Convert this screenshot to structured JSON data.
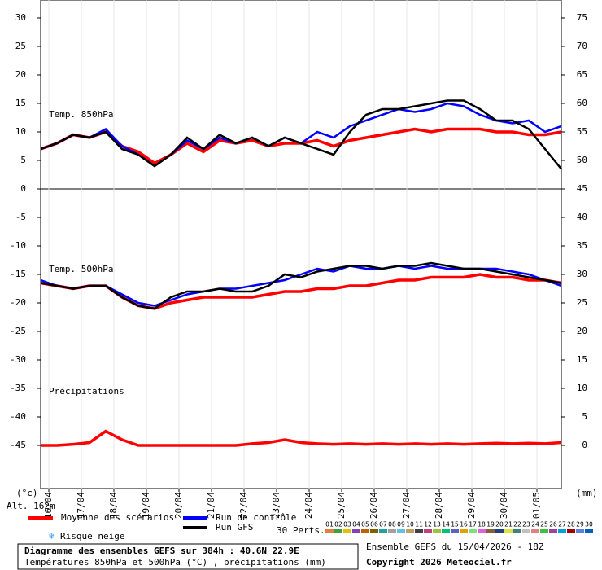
{
  "chart_data": {
    "type": "line",
    "x": [
      0,
      12,
      24,
      36,
      48,
      60,
      72,
      84,
      96,
      108,
      120,
      132,
      144,
      156,
      168,
      180,
      192,
      204,
      216,
      228,
      240,
      252,
      264,
      276,
      288,
      300,
      312,
      324,
      336,
      348,
      360,
      372,
      384
    ],
    "xlim": [
      0,
      384
    ],
    "xticks": [
      {
        "value": 6,
        "label": "16/04"
      },
      {
        "value": 30,
        "label": "17/04"
      },
      {
        "value": 54,
        "label": "18/04"
      },
      {
        "value": 78,
        "label": "19/04"
      },
      {
        "value": 102,
        "label": "20/04"
      },
      {
        "value": 126,
        "label": "21/04"
      },
      {
        "value": 150,
        "label": "22/04"
      },
      {
        "value": 174,
        "label": "23/04"
      },
      {
        "value": 198,
        "label": "24/04"
      },
      {
        "value": 222,
        "label": "25/04"
      },
      {
        "value": 246,
        "label": "26/04"
      },
      {
        "value": 270,
        "label": "27/04"
      },
      {
        "value": 294,
        "label": "28/04"
      },
      {
        "value": 318,
        "label": "29/04"
      },
      {
        "value": 342,
        "label": "30/04"
      },
      {
        "value": 366,
        "label": "01/05"
      }
    ],
    "ylim": [
      -52.57,
      33.14
    ],
    "yticks": [
      30,
      25,
      20,
      15,
      10,
      5,
      0,
      -5,
      -10,
      -15,
      -20,
      -25,
      -30,
      -35,
      -40,
      -45
    ],
    "y2lim": [
      -7.57,
      78.14
    ],
    "y2ticks": [
      75,
      70,
      65,
      60,
      55,
      50,
      45,
      40,
      35,
      30,
      25,
      20,
      15,
      10,
      5,
      0
    ],
    "y_unit_label": "(°c)",
    "y2_unit_label": "(mm)",
    "altitude_label": "Alt. 162m",
    "panel_labels": [
      "Temp. 850hPa",
      "Temp. 500hPa",
      "Précipitations"
    ],
    "series": [
      {
        "name": "Moyenne des scénarios",
        "color": "#ff0000",
        "values": [
          7,
          8,
          9.5,
          9,
          10,
          7.5,
          6.5,
          4.5,
          6,
          8,
          6.5,
          8.5,
          8,
          8.5,
          7.5,
          8,
          8,
          8.5,
          7.5,
          8.5,
          9,
          9.5,
          10,
          10.5,
          10,
          10.5,
          10.5,
          10.5,
          10,
          10,
          9.5,
          9.5,
          10
        ]
      },
      {
        "name": "Run de contrôle",
        "color": "#0000ff",
        "values": [
          7,
          8,
          9.5,
          9,
          10.5,
          7.5,
          6,
          4,
          6,
          8.5,
          7,
          9,
          8,
          9,
          7.5,
          9,
          8,
          10,
          9,
          11,
          12,
          13,
          14,
          13.5,
          14,
          15,
          14.5,
          13,
          12,
          11.5,
          12,
          10,
          11
        ]
      },
      {
        "name": "Run GFS",
        "color": "#000000",
        "values": [
          7,
          8,
          9.5,
          9,
          10,
          7,
          6,
          4,
          6,
          9,
          7,
          9.5,
          8,
          9,
          7.5,
          9,
          8,
          7,
          6,
          10,
          13,
          14,
          14,
          14.5,
          15,
          15.5,
          15.5,
          14,
          12,
          12,
          10.5,
          7,
          3.5
        ]
      },
      {
        "color": "#ff0000",
        "values": [
          -16.5,
          -17,
          -17.5,
          -17,
          -17,
          -19,
          -20.5,
          -21,
          -20,
          -19.5,
          -19,
          -19,
          -19,
          -19,
          -18.5,
          -18,
          -18,
          -17.5,
          -17.5,
          -17,
          -17,
          -16.5,
          -16,
          -16,
          -15.5,
          -15.5,
          -15.5,
          -15,
          -15.5,
          -15.5,
          -16,
          -16,
          -16.5
        ]
      },
      {
        "color": "#0000ff",
        "values": [
          -16,
          -17,
          -17.5,
          -17,
          -17,
          -18.5,
          -20,
          -20.5,
          -19.5,
          -18.5,
          -18,
          -17.5,
          -17.5,
          -17,
          -16.5,
          -16,
          -15,
          -14,
          -14.5,
          -13.5,
          -14,
          -14,
          -13.5,
          -14,
          -13.5,
          -14,
          -14,
          -14,
          -14,
          -14.5,
          -15,
          -16,
          -17
        ]
      },
      {
        "color": "#000000",
        "values": [
          -16.5,
          -17,
          -17.5,
          -17,
          -17,
          -19,
          -20.5,
          -21,
          -19,
          -18,
          -18,
          -17.5,
          -18,
          -18,
          -17,
          -15,
          -15.5,
          -14.5,
          -14,
          -13.5,
          -13.5,
          -14,
          -13.5,
          -13.5,
          -13,
          -13.5,
          -14,
          -14,
          -14.5,
          -15,
          -15.5,
          -16,
          -16.5
        ]
      },
      {
        "color": "#ff0000",
        "axis": "y2",
        "values": [
          0,
          0,
          0.2,
          0.5,
          2.5,
          1,
          0,
          0,
          0,
          0,
          0,
          0,
          0,
          0.3,
          0.5,
          1,
          0.5,
          0.3,
          0.2,
          0.3,
          0.2,
          0.3,
          0.2,
          0.3,
          0.2,
          0.3,
          0.2,
          0.3,
          0.4,
          0.3,
          0.4,
          0.3,
          0.5
        ]
      }
    ],
    "snow_risk_label": "Risque neige",
    "perturbations_label": "30 Perts.",
    "perturbation_legend": [
      {
        "label": "01",
        "color": "#e08040"
      },
      {
        "label": "02",
        "color": "#40a040"
      },
      {
        "label": "03",
        "color": "#e0c000"
      },
      {
        "label": "04",
        "color": "#8040c0"
      },
      {
        "label": "05",
        "color": "#c06000"
      },
      {
        "label": "06",
        "color": "#806000"
      },
      {
        "label": "07",
        "color": "#20a0a0"
      },
      {
        "label": "08",
        "color": "#a0a0a0"
      },
      {
        "label": "09",
        "color": "#60c0e0"
      },
      {
        "label": "10",
        "color": "#c0a060"
      },
      {
        "label": "11",
        "color": "#404040"
      },
      {
        "label": "12",
        "color": "#c04080"
      },
      {
        "label": "13",
        "color": "#a0c040"
      },
      {
        "label": "14",
        "color": "#00c080"
      },
      {
        "label": "15",
        "color": "#6060c0"
      },
      {
        "label": "16",
        "color": "#e0a000"
      },
      {
        "label": "17",
        "color": "#80e080"
      },
      {
        "label": "18",
        "color": "#e060e0"
      },
      {
        "label": "19",
        "color": "#806040"
      },
      {
        "label": "20",
        "color": "#204080"
      },
      {
        "label": "21",
        "color": "#e0e040"
      },
      {
        "label": "22",
        "color": "#408080"
      },
      {
        "label": "23",
        "color": "#c0c0c0"
      },
      {
        "label": "24",
        "color": "#e08080"
      },
      {
        "label": "25",
        "color": "#40c040"
      },
      {
        "label": "26",
        "color": "#a040a0"
      },
      {
        "label": "27",
        "color": "#00a0e0"
      },
      {
        "label": "28",
        "color": "#a00000"
      },
      {
        "label": "29",
        "color": "#6080e0"
      },
      {
        "label": "30",
        "color": "#0060c0"
      }
    ],
    "footer": {
      "title": "Diagramme des ensembles GEFS sur 384h : 40.6N 22.9E",
      "subtitle": "Températures 850hPa et 500hPa (°C) , précipitations (mm)",
      "run": "Ensemble GEFS du 15/04/2026 - 18Z",
      "copyright": "Copyright 2026 Meteociel.fr"
    }
  }
}
